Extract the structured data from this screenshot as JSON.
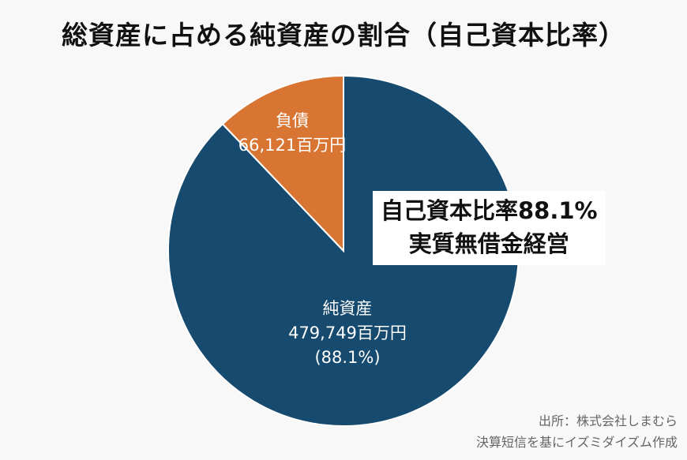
{
  "title": "総資産に占める純資産の割合（自己資本比率）",
  "chart_data": {
    "type": "pie",
    "title": "総資産に占める純資産の割合（自己資本比率）",
    "slices": [
      {
        "label": "負債",
        "value": 66121,
        "unit": "百万円",
        "value_text": "66,121百万円",
        "percent": 11.9,
        "color": "#d97532"
      },
      {
        "label": "純資産",
        "value": 479749,
        "unit": "百万円",
        "value_text": "479,749百万円",
        "percent": 88.1,
        "percent_text": "(88.1%)",
        "color": "#164a6e"
      }
    ],
    "start_angle": "12 o'clock",
    "annotations": [
      "自己資本比率88.1%",
      "実質無借金経営"
    ]
  },
  "labels": {
    "liability_name": "負債",
    "liability_value": "66,121百万円",
    "equity_name": "純資産",
    "equity_value": "479,749百万円",
    "equity_percent": "(88.1%)"
  },
  "callout": {
    "line1": "自己資本比率88.1%",
    "line2": "実質無借金経営"
  },
  "source": {
    "line1": "出所：株式会社しまむら",
    "line2": "決算短信を基にイズミダイズム作成"
  },
  "colors": {
    "equity": "#164a6e",
    "liability": "#d97532",
    "background": "#f8f8f8"
  }
}
